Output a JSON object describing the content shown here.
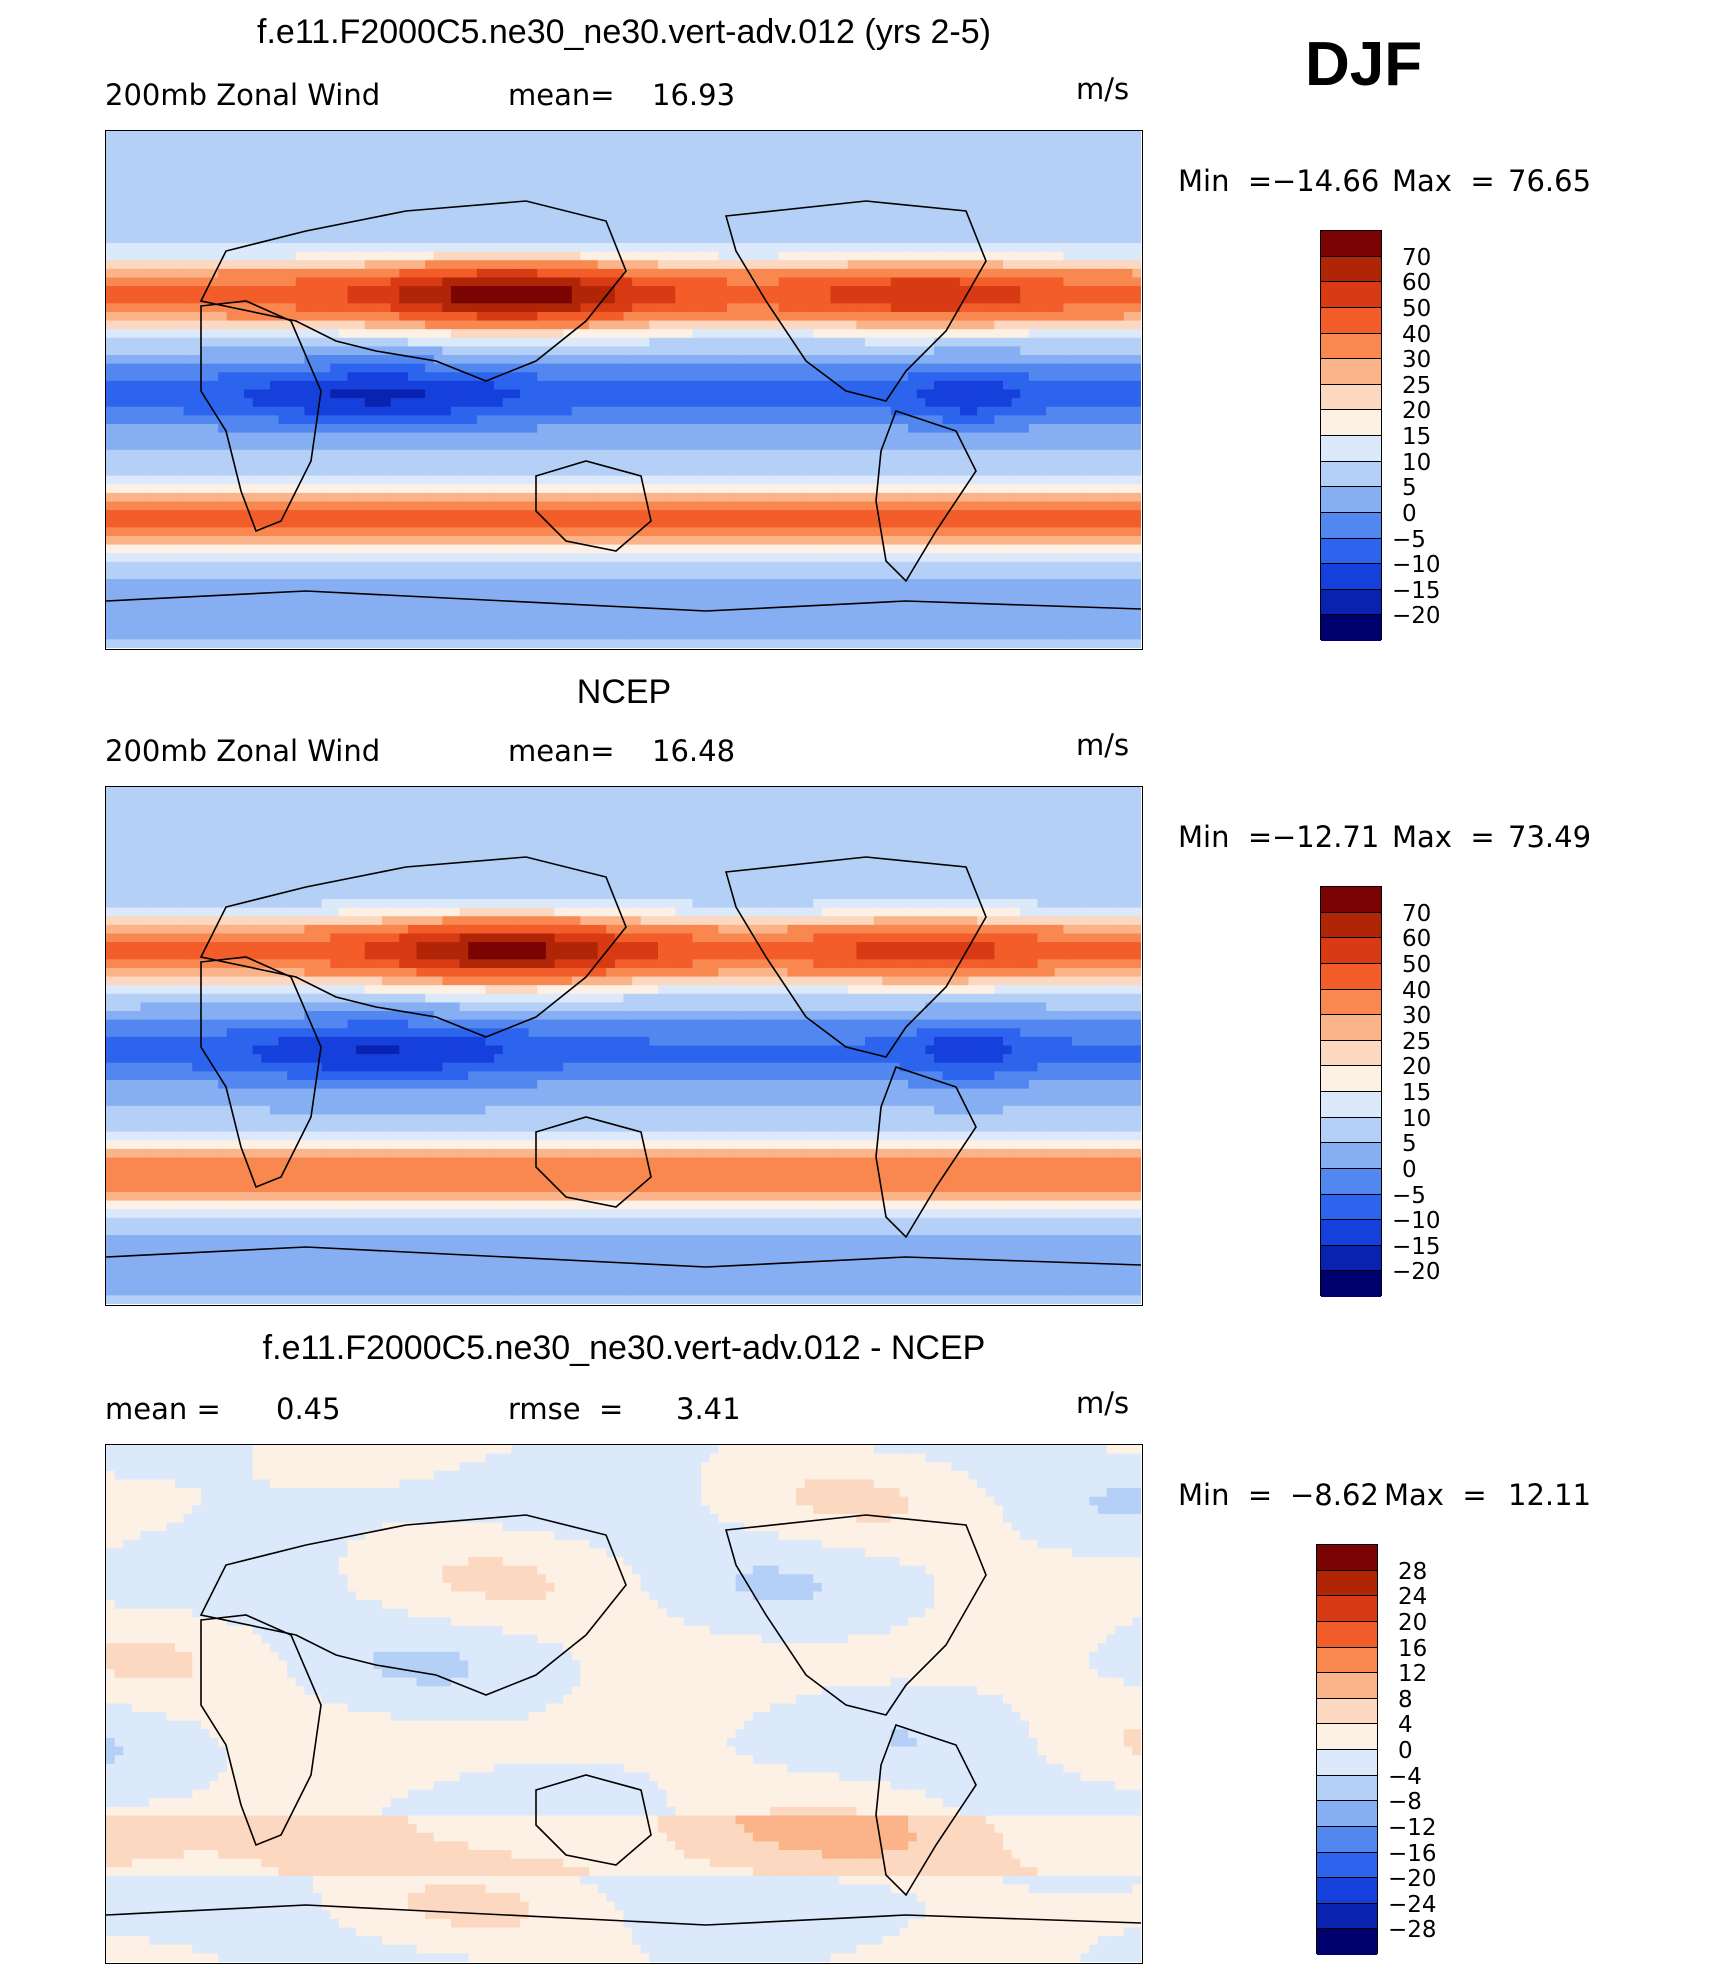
{
  "season": "DJF",
  "panels": [
    {
      "title": "f.e11.F2000C5.ne30_ne30.vert-adv.012 (yrs 2-5)",
      "left_label": "200mb Zonal Wind",
      "stat_label": "mean=",
      "stat_value": "16.93",
      "extra_label": "",
      "extra_value": "",
      "units": "m/s",
      "min_label": "Min  =",
      "min_value": "−14.66",
      "max_label": "Max  =",
      "max_value": "76.65",
      "colorbar_ticks": [
        "70",
        "60",
        "50",
        "40",
        "30",
        "25",
        "20",
        "15",
        "10",
        "5",
        "0",
        "−5",
        "−10",
        "−15",
        "−20"
      ],
      "colorbar_colors": [
        "#7a0403",
        "#b02506",
        "#d83a14",
        "#f25d2a",
        "#f8884f",
        "#fbb38a",
        "#fcd8c0",
        "#fdf0e4",
        "#dbe9fb",
        "#b5d0f7",
        "#86aef2",
        "#5287f0",
        "#2d64ee",
        "#1540dc",
        "#0a22b0",
        "#00006e"
      ],
      "field": "model"
    },
    {
      "title": "NCEP",
      "left_label": "200mb Zonal Wind",
      "stat_label": "mean=",
      "stat_value": "16.48",
      "extra_label": "",
      "extra_value": "",
      "units": "m/s",
      "min_label": "Min  =",
      "min_value": "−12.71",
      "max_label": "Max  =",
      "max_value": "73.49",
      "colorbar_ticks": [
        "70",
        "60",
        "50",
        "40",
        "30",
        "25",
        "20",
        "15",
        "10",
        "5",
        "0",
        "−5",
        "−10",
        "−15",
        "−20"
      ],
      "colorbar_colors": [
        "#7a0403",
        "#b02506",
        "#d83a14",
        "#f25d2a",
        "#f8884f",
        "#fbb38a",
        "#fcd8c0",
        "#fdf0e4",
        "#dbe9fb",
        "#b5d0f7",
        "#86aef2",
        "#5287f0",
        "#2d64ee",
        "#1540dc",
        "#0a22b0",
        "#00006e"
      ],
      "field": "obs"
    },
    {
      "title": "f.e11.F2000C5.ne30_ne30.vert-adv.012 - NCEP",
      "left_label": "mean =",
      "stat_label": "",
      "stat_value": "0.45",
      "extra_label": "rmse  =",
      "extra_value": "3.41",
      "units": "m/s",
      "min_label": "Min  =",
      "min_value": "−8.62",
      "max_label": "Max  =",
      "max_value": "12.11",
      "colorbar_ticks": [
        "28",
        "24",
        "20",
        "16",
        "12",
        "8",
        "4",
        "0",
        "−4",
        "−8",
        "−12",
        "−16",
        "−20",
        "−24",
        "−28"
      ],
      "colorbar_colors": [
        "#7a0403",
        "#b02506",
        "#d83a14",
        "#f25d2a",
        "#f8884f",
        "#fbb38a",
        "#fcd8c0",
        "#fdf0e4",
        "#dbe9fb",
        "#b5d0f7",
        "#86aef2",
        "#5287f0",
        "#2d64ee",
        "#1540dc",
        "#0a22b0",
        "#00006e"
      ],
      "field": "diff"
    }
  ]
}
